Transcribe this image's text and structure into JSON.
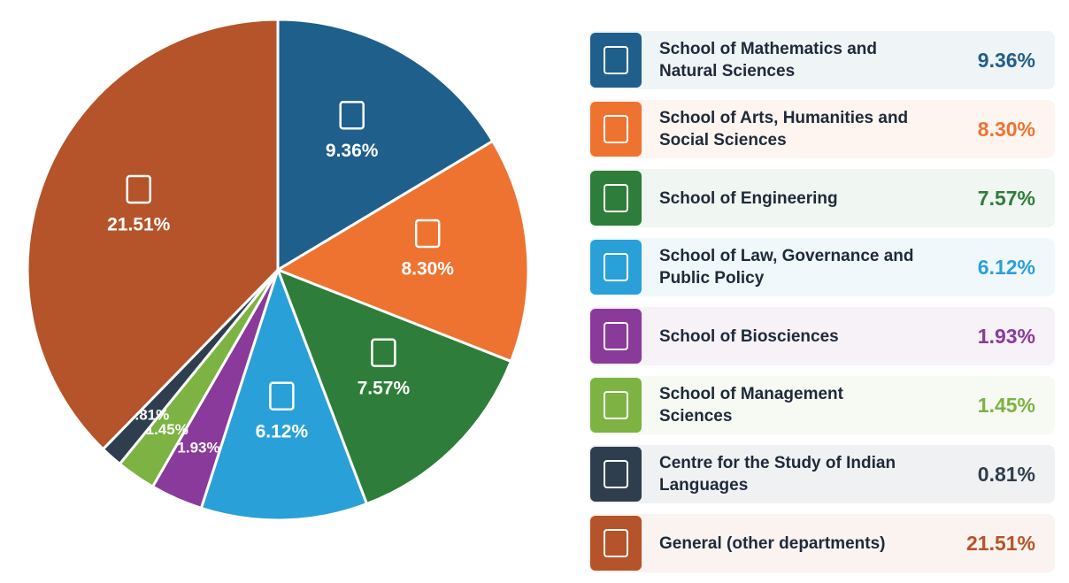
{
  "chart_data": {
    "type": "pie",
    "categories": [
      "School of Mathematics and Natural Sciences",
      "School of Arts, Humanities and Social Sciences",
      "School of Engineering",
      "School of Law, Governance and Public Policy",
      "School of Biosciences",
      "School of Management Sciences",
      "Centre for the Study of Indian Languages",
      "General (other departments)"
    ],
    "values": [
      9.36,
      8.3,
      7.57,
      6.12,
      1.93,
      1.45,
      0.81,
      21.51
    ],
    "value_labels": [
      "9.36%",
      "8.30%",
      "7.57%",
      "6.12%",
      "1.93%",
      "1.45%",
      "0.81%",
      "21.51%"
    ],
    "colors": [
      "#1f5f8b",
      "#ee7330",
      "#2e7d3a",
      "#2aa0d8",
      "#8a3a9a",
      "#7cb342",
      "#2e3e4e",
      "#b5532a"
    ],
    "legend": "right"
  }
}
